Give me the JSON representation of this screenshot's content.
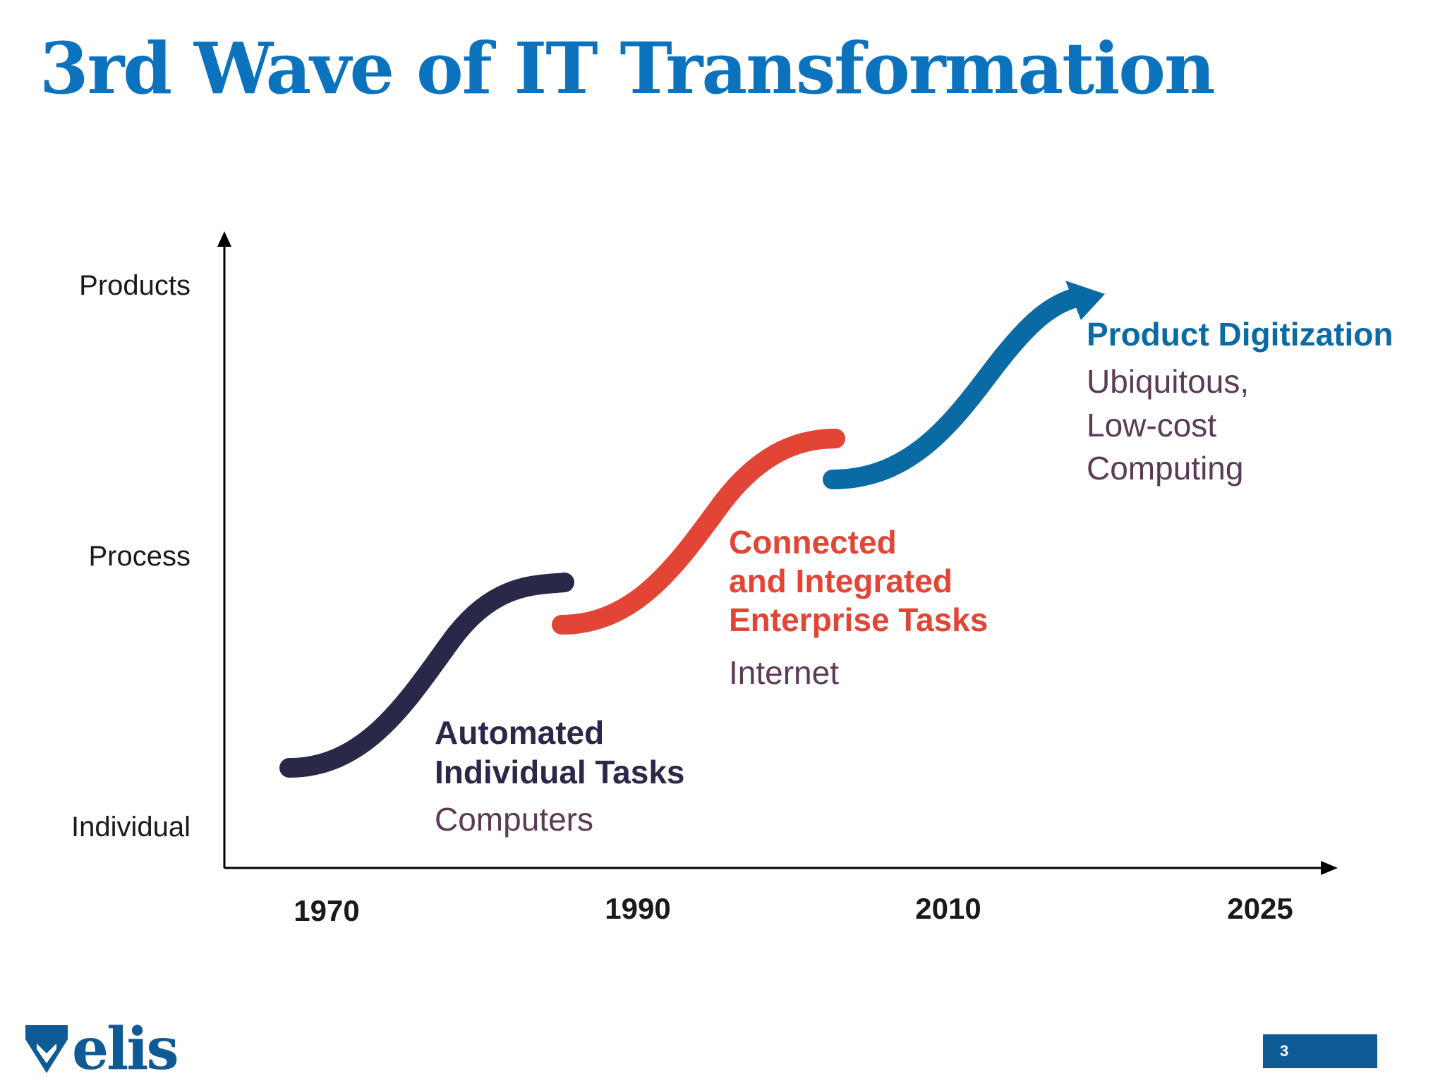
{
  "slide": {
    "title": "3rd Wave of IT Transformation",
    "page_number": "3"
  },
  "logo": {
    "text": "elis"
  },
  "diagram": {
    "y_axis_labels": [
      "Products",
      "Process",
      "Individual"
    ],
    "x_axis_labels": [
      "1970",
      "1990",
      "2010",
      "2025"
    ],
    "waves": [
      {
        "title_lines": [
          "Automated",
          "Individual Tasks"
        ],
        "subtitle_lines": [
          "Computers"
        ],
        "color": "#2a2849"
      },
      {
        "title_lines": [
          "Connected",
          "and Integrated",
          "Enterprise Tasks"
        ],
        "subtitle_lines": [
          "Internet"
        ],
        "color": "#e24535"
      },
      {
        "title_lines": [
          "Product Digitization"
        ],
        "subtitle_lines": [
          "Ubiquitous,",
          "Low-cost",
          "Computing"
        ],
        "color": "#0a6aa4"
      }
    ],
    "subtitle_color": "#5a3a55",
    "axis_color": "#000000"
  }
}
